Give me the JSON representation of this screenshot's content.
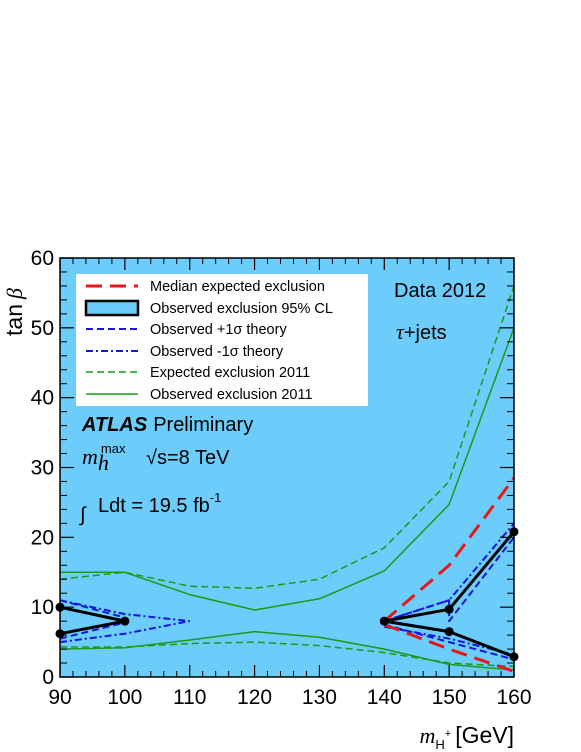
{
  "chart_data": {
    "type": "line",
    "xlabel": {
      "main": "m",
      "sub": "H",
      "sup": "+",
      "unit": "[GeV]"
    },
    "ylabel": {
      "main": "tan",
      "greek": "β"
    },
    "xlim": [
      90,
      160
    ],
    "ylim": [
      0,
      60
    ],
    "xticks": [
      90,
      100,
      110,
      120,
      130,
      140,
      150,
      160
    ],
    "yticks": [
      0,
      10,
      20,
      30,
      40,
      50,
      60
    ],
    "xtick_labels": [
      "90",
      "100",
      "110",
      "120",
      "130",
      "140",
      "150",
      "160"
    ],
    "ytick_labels": [
      "0",
      "10",
      "20",
      "30",
      "40",
      "50",
      "60"
    ],
    "background_fill_color": "#6ccdfa",
    "legend": {
      "placement": "top-left",
      "entries": [
        {
          "label": "Median expected exclusion",
          "key": "median"
        },
        {
          "label": "Observed exclusion 95% CL",
          "key": "observed"
        },
        {
          "label": "Observed +1σ theory",
          "key": "plus1"
        },
        {
          "label": "Observed -1σ theory",
          "key": "minus1"
        },
        {
          "label": "Expected exclusion 2011",
          "key": "exp2011"
        },
        {
          "label": "Observed exclusion 2011",
          "key": "obs2011"
        }
      ]
    },
    "annotations": {
      "data_label": "Data 2012",
      "channel_tau": "τ",
      "channel_rest": "+jets",
      "experiment": "ATLAS",
      "status": "Preliminary",
      "scenario_main": "m",
      "scenario_sub": "h",
      "scenario_sup": "max",
      "energy": "√s=8 TeV",
      "lumi_integral": "∫",
      "lumi": "Ldt = 19.5 fb",
      "lumi_sup": "-1"
    },
    "series": [
      {
        "key": "median",
        "color": "#e8161a",
        "style": "longdash",
        "width": 3,
        "segments": [
          [
            [
              140,
              8
            ],
            [
              150,
              16
            ],
            [
              160,
              28.5
            ]
          ],
          [
            [
              140,
              7.5
            ],
            [
              150,
              4
            ],
            [
              160,
              0.8
            ]
          ]
        ]
      },
      {
        "key": "observed",
        "color": "#000000",
        "style": "solid",
        "width": 3,
        "markers": true,
        "segments": [
          [
            [
              90,
              10
            ],
            [
              100,
              8
            ],
            [
              90,
              6.2
            ]
          ],
          [
            [
              160,
              20.8
            ],
            [
              150,
              9.7
            ],
            [
              140,
              8
            ],
            [
              150,
              6.5
            ],
            [
              160,
              2.9
            ]
          ]
        ]
      },
      {
        "key": "plus1",
        "color": "#1515e0",
        "style": "dash",
        "width": 2,
        "segments": [
          [
            [
              140,
              8
            ],
            [
              150,
              11
            ],
            [
              150,
              8
            ],
            [
              160,
              20
            ]
          ],
          [
            [
              140,
              7.5
            ],
            [
              150,
              5
            ],
            [
              160,
              2.5
            ]
          ],
          [
            [
              90,
              11
            ],
            [
              100,
              8.5
            ]
          ],
          [
            [
              90,
              5.5
            ],
            [
              100,
              7.8
            ]
          ]
        ]
      },
      {
        "key": "minus1",
        "color": "#1515e0",
        "style": "dashdot",
        "width": 2,
        "segments": [
          [
            [
              90,
              11
            ],
            [
              100,
              9
            ],
            [
              110,
              8
            ]
          ],
          [
            [
              90,
              5
            ],
            [
              100,
              6.2
            ],
            [
              110,
              8
            ]
          ],
          [
            [
              140,
              8
            ],
            [
              150,
              11
            ],
            [
              160,
              22
            ]
          ],
          [
            [
              140,
              7.2
            ],
            [
              150,
              5.5
            ],
            [
              160,
              3.2
            ]
          ]
        ]
      },
      {
        "key": "exp2011",
        "color": "#1a9a1a",
        "style": "dash",
        "width": 1.5,
        "segments": [
          [
            [
              90,
              14
            ],
            [
              100,
              15
            ],
            [
              110,
              13
            ],
            [
              120,
              12.7
            ],
            [
              130,
              14
            ],
            [
              140,
              18.5
            ],
            [
              150,
              28
            ],
            [
              160,
              56
            ]
          ],
          [
            [
              90,
              4.3
            ],
            [
              100,
              4.3
            ],
            [
              110,
              4.8
            ],
            [
              120,
              5
            ],
            [
              130,
              4.5
            ],
            [
              140,
              3.5
            ],
            [
              150,
              2
            ],
            [
              160,
              1.5
            ]
          ]
        ]
      },
      {
        "key": "obs2011",
        "color": "#1a9a1a",
        "style": "solid",
        "width": 1.5,
        "segments": [
          [
            [
              90,
              15
            ],
            [
              100,
              15
            ],
            [
              110,
              11.8
            ],
            [
              120,
              9.6
            ],
            [
              130,
              11.2
            ],
            [
              140,
              15.2
            ],
            [
              150,
              24.7
            ],
            [
              160,
              50
            ]
          ],
          [
            [
              90,
              4
            ],
            [
              100,
              4.2
            ],
            [
              110,
              5.3
            ],
            [
              120,
              6.5
            ],
            [
              130,
              5.7
            ],
            [
              140,
              4
            ],
            [
              150,
              1.8
            ],
            [
              160,
              1
            ]
          ]
        ]
      }
    ]
  }
}
